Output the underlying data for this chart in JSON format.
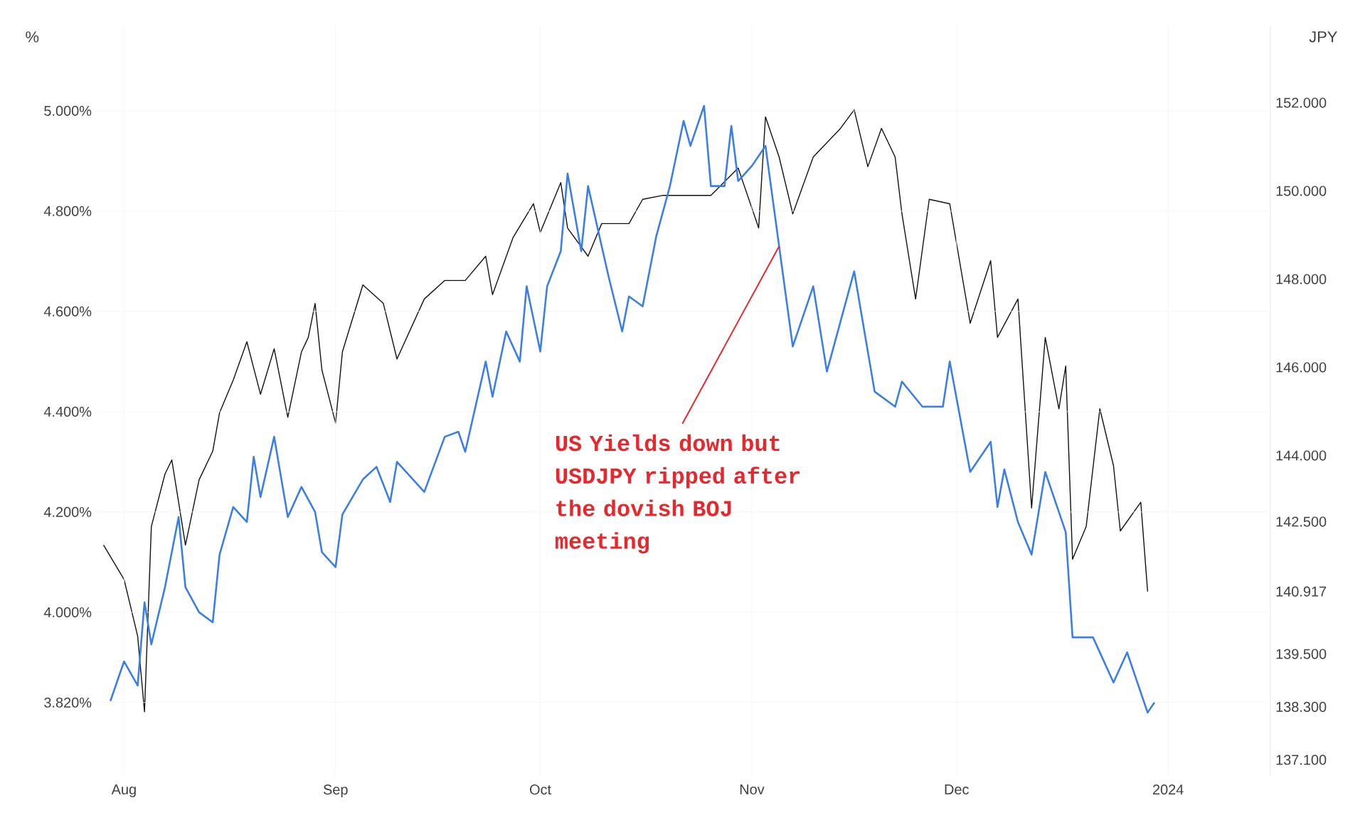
{
  "chart_data": {
    "type": "line",
    "ylabel": "%",
    "y2label": "JPY",
    "grid": true,
    "xlim": [
      "2023-07-28",
      "2024-01-16"
    ],
    "xticks": [
      {
        "value": "2023-08-01",
        "label": "Aug"
      },
      {
        "value": "2023-09-01",
        "label": "Sep"
      },
      {
        "value": "2023-10-01",
        "label": "Oct"
      },
      {
        "value": "2023-11-01",
        "label": "Nov"
      },
      {
        "value": "2023-12-01",
        "label": "Dec"
      },
      {
        "value": "2024-01-01",
        "label": "2024"
      }
    ],
    "ylim": [
      3.675,
      5.17
    ],
    "yticks": [
      {
        "value": 3.82,
        "label": "3.820%"
      },
      {
        "value": 4.0,
        "label": "4.000%"
      },
      {
        "value": 4.2,
        "label": "4.200%"
      },
      {
        "value": 4.4,
        "label": "4.400%"
      },
      {
        "value": 4.6,
        "label": "4.600%"
      },
      {
        "value": 4.8,
        "label": "4.800%"
      },
      {
        "value": 5.0,
        "label": "5.000%"
      }
    ],
    "y2lim": [
      136.75,
      153.75
    ],
    "y2ticks": [
      {
        "value": 137.1,
        "label": "137.100"
      },
      {
        "value": 138.3,
        "label": "138.300"
      },
      {
        "value": 139.5,
        "label": "139.500"
      },
      {
        "value": 140.917,
        "label": "140.917"
      },
      {
        "value": 142.5,
        "label": "142.500"
      },
      {
        "value": 144,
        "label": "144.000"
      },
      {
        "value": 146,
        "label": "146.000"
      },
      {
        "value": 148,
        "label": "148.000"
      },
      {
        "value": 150,
        "label": "150.000"
      },
      {
        "value": 152,
        "label": "152.000"
      }
    ],
    "series": [
      {
        "color": "#111111",
        "axis": "y2",
        "x": [
          "2023-07-29",
          "2023-08-01",
          "2023-08-02",
          "2023-08-03",
          "2023-08-04",
          "2023-08-05",
          "2023-08-07",
          "2023-08-08",
          "2023-08-09",
          "2023-08-10",
          "2023-08-12",
          "2023-08-14",
          "2023-08-15",
          "2023-08-17",
          "2023-08-19",
          "2023-08-21",
          "2023-08-23",
          "2023-08-25",
          "2023-08-27",
          "2023-08-28",
          "2023-08-29",
          "2023-08-30",
          "2023-09-01",
          "2023-09-02",
          "2023-09-05",
          "2023-09-08",
          "2023-09-10",
          "2023-09-14",
          "2023-09-17",
          "2023-09-20",
          "2023-09-23",
          "2023-09-24",
          "2023-09-27",
          "2023-09-30",
          "2023-10-01",
          "2023-10-04",
          "2023-10-05",
          "2023-10-08",
          "2023-10-10",
          "2023-10-14",
          "2023-10-16",
          "2023-10-19",
          "2023-10-26",
          "2023-10-30",
          "2023-11-02",
          "2023-11-03",
          "2023-11-05",
          "2023-11-07",
          "2023-11-10",
          "2023-11-14",
          "2023-11-16",
          "2023-11-18",
          "2023-11-20",
          "2023-11-22",
          "2023-11-23",
          "2023-11-25",
          "2023-11-27",
          "2023-11-30",
          "2023-12-03",
          "2023-12-06",
          "2023-12-07",
          "2023-12-10",
          "2023-12-12",
          "2023-12-14",
          "2023-12-16",
          "2023-12-17",
          "2023-12-18",
          "2023-12-20",
          "2023-12-22",
          "2023-12-24",
          "2023-12-25",
          "2023-12-28",
          "2023-12-29"
        ],
        "values": [
          141.97,
          141.19,
          140.55,
          139.9,
          138.19,
          142.39,
          143.58,
          143.9,
          142.94,
          141.97,
          143.45,
          144.1,
          144.97,
          145.71,
          146.58,
          145.39,
          146.42,
          144.87,
          146.35,
          146.68,
          147.45,
          145.94,
          144.74,
          146.35,
          147.87,
          147.45,
          146.19,
          147.55,
          147.97,
          147.97,
          148.52,
          147.65,
          148.94,
          149.71,
          149.06,
          150.19,
          149.16,
          148.52,
          149.26,
          149.26,
          149.81,
          149.9,
          149.9,
          150.52,
          149.16,
          151.68,
          150.77,
          149.48,
          150.77,
          151.42,
          151.84,
          150.55,
          151.42,
          150.77,
          149.48,
          147.55,
          149.81,
          149.71,
          147.0,
          148.42,
          146.68,
          147.55,
          142.81,
          146.68,
          145.06,
          146.03,
          141.65,
          142.39,
          145.06,
          143.77,
          142.29,
          142.94,
          140.917
        ]
      },
      {
        "color": "#3a7ee8",
        "x": [
          "2023-07-30",
          "2023-08-01",
          "2023-08-03",
          "2023-08-04",
          "2023-08-05",
          "2023-08-07",
          "2023-08-09",
          "2023-08-10",
          "2023-08-12",
          "2023-08-14",
          "2023-08-15",
          "2023-08-17",
          "2023-08-19",
          "2023-08-20",
          "2023-08-21",
          "2023-08-23",
          "2023-08-25",
          "2023-08-27",
          "2023-08-29",
          "2023-08-30",
          "2023-09-01",
          "2023-09-02",
          "2023-09-05",
          "2023-09-07",
          "2023-09-09",
          "2023-09-10",
          "2023-09-14",
          "2023-09-17",
          "2023-09-19",
          "2023-09-20",
          "2023-09-23",
          "2023-09-24",
          "2023-09-26",
          "2023-09-28",
          "2023-09-29",
          "2023-10-01",
          "2023-10-02",
          "2023-10-04",
          "2023-10-05",
          "2023-10-07",
          "2023-10-08",
          "2023-10-11",
          "2023-10-13",
          "2023-10-14",
          "2023-10-16",
          "2023-10-18",
          "2023-10-20",
          "2023-10-22",
          "2023-10-23",
          "2023-10-25",
          "2023-10-26",
          "2023-10-28",
          "2023-10-29",
          "2023-10-30",
          "2023-11-01",
          "2023-11-03",
          "2023-11-05",
          "2023-11-07",
          "2023-11-10",
          "2023-11-12",
          "2023-11-16",
          "2023-11-19",
          "2023-11-22",
          "2023-11-23",
          "2023-11-26",
          "2023-11-29",
          "2023-11-30",
          "2023-12-03",
          "2023-12-06",
          "2023-12-07",
          "2023-12-08",
          "2023-12-10",
          "2023-12-12",
          "2023-12-14",
          "2023-12-16",
          "2023-12-17",
          "2023-12-18",
          "2023-12-21",
          "2023-12-24",
          "2023-12-26",
          "2023-12-29",
          "2023-12-30"
        ],
        "values": [
          3.823,
          3.902,
          3.854,
          4.02,
          3.936,
          4.05,
          4.19,
          4.05,
          4.0,
          3.98,
          4.115,
          4.21,
          4.18,
          4.31,
          4.23,
          4.35,
          4.19,
          4.25,
          4.2,
          4.12,
          4.09,
          4.195,
          4.265,
          4.29,
          4.22,
          4.3,
          4.24,
          4.35,
          4.36,
          4.32,
          4.5,
          4.43,
          4.56,
          4.5,
          4.65,
          4.52,
          4.65,
          4.72,
          4.875,
          4.72,
          4.85,
          4.67,
          4.56,
          4.63,
          4.61,
          4.75,
          4.85,
          4.98,
          4.93,
          5.01,
          4.85,
          4.85,
          4.97,
          4.86,
          4.89,
          4.93,
          4.73,
          4.53,
          4.65,
          4.48,
          4.68,
          4.44,
          4.41,
          4.46,
          4.41,
          4.41,
          4.5,
          4.28,
          4.34,
          4.21,
          4.285,
          4.18,
          4.115,
          4.28,
          4.2,
          4.16,
          3.95,
          3.95,
          3.86,
          3.92,
          3.8,
          3.82
        ]
      }
    ],
    "annotations": [
      {
        "text": "US Yields down but USDJPY ripped after the dovish BOJ meeting",
        "x": "2023-11-05",
        "y": 4.73
      }
    ]
  }
}
